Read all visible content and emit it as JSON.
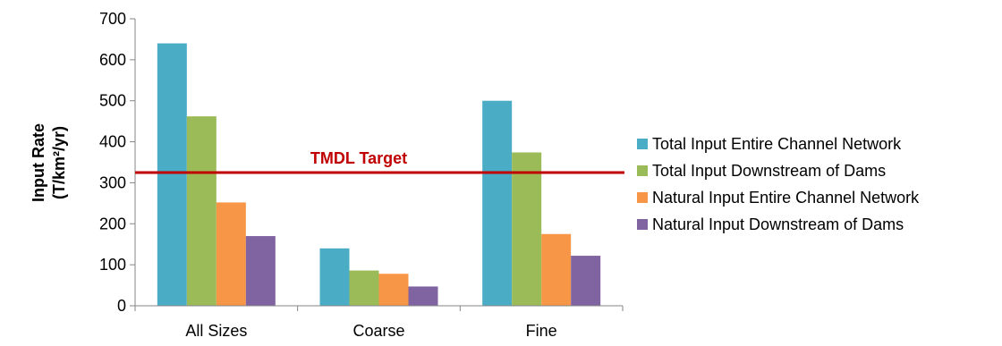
{
  "chart_data": {
    "type": "bar",
    "categories": [
      "All Sizes",
      "Coarse",
      "Fine"
    ],
    "series": [
      {
        "name": "Total Input Entire Channel Network",
        "color": "#4BACC6",
        "values": [
          640,
          140,
          500
        ]
      },
      {
        "name": "Total Input Downstream of Dams",
        "color": "#9BBB59",
        "values": [
          462,
          86,
          374
        ]
      },
      {
        "name": "Natural Input Entire Channel Network",
        "color": "#F79646",
        "values": [
          252,
          78,
          175
        ]
      },
      {
        "name": "Natural Input Downstream of Dams",
        "color": "#8064A2",
        "values": [
          170,
          47,
          122
        ]
      }
    ],
    "ylabel_line1": "Input Rate",
    "ylabel_line2": "(T/km²/yr)",
    "ylim": [
      0,
      700
    ],
    "yticks": [
      0,
      100,
      200,
      300,
      400,
      500,
      600,
      700
    ],
    "reference_line": {
      "label": "TMDL Target",
      "value": 325,
      "color": "#C00000"
    },
    "legend_position": "right",
    "grid": false
  }
}
